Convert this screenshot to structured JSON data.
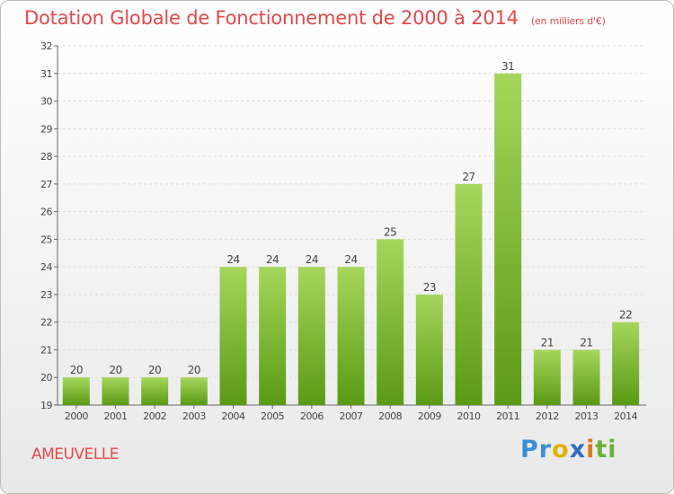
{
  "title": "Dotation Globale de Fonctionnement de 2000 à 2014",
  "subtitle": "(en milliers d'€)",
  "commune": "AMEUVELLE",
  "logo": {
    "text": "Proxiti",
    "letters": [
      {
        "ch": "P",
        "color": "#3a8fd6"
      },
      {
        "ch": "r",
        "color": "#3a8fd6"
      },
      {
        "ch": "o",
        "color": "#e0b400"
      },
      {
        "ch": "x",
        "color": "#2c6fc0"
      },
      {
        "ch": "i",
        "color": "#e07a10"
      },
      {
        "ch": "t",
        "color": "#6ab13a"
      },
      {
        "ch": "i",
        "color": "#6ab13a"
      }
    ]
  },
  "colors": {
    "title": "#e54848",
    "bar_light": "#a6d65c",
    "bar_dark": "#5a9a14",
    "axis": "#666666"
  },
  "chart_data": {
    "type": "bar",
    "categories": [
      "2000",
      "2001",
      "2002",
      "2003",
      "2004",
      "2005",
      "2006",
      "2007",
      "2008",
      "2009",
      "2010",
      "2011",
      "2012",
      "2013",
      "2014"
    ],
    "values": [
      20,
      20,
      20,
      20,
      24,
      24,
      24,
      24,
      25,
      23,
      27,
      31,
      21,
      21,
      22
    ],
    "ylim": [
      19,
      32
    ],
    "yticks": [
      19,
      20,
      21,
      22,
      23,
      24,
      25,
      26,
      27,
      28,
      29,
      30,
      31,
      32
    ],
    "grid": true,
    "legend": "none"
  }
}
